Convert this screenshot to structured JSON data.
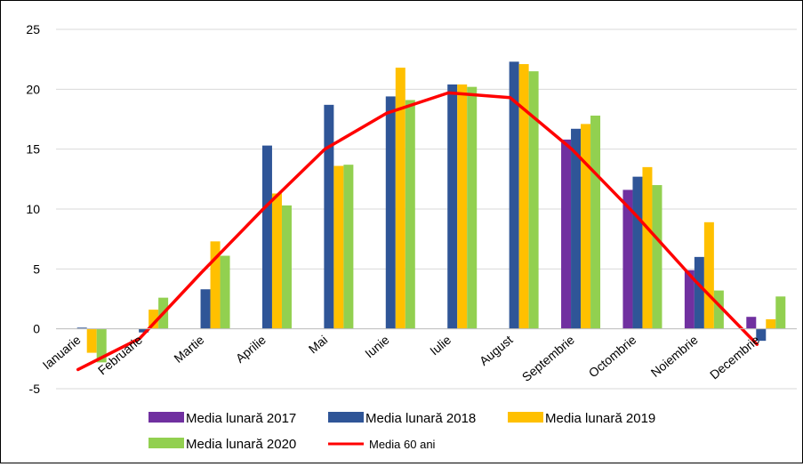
{
  "chart_data": {
    "type": "bar",
    "categories": [
      "Ianuarie",
      "Februarie",
      "Martie",
      "Aprilie",
      "Mai",
      "Iunie",
      "Iulie",
      "August",
      "Septembrie",
      "Octombrie",
      "Noiembrie",
      "Decembrie"
    ],
    "series": [
      {
        "name": "Media lunară 2017",
        "type": "bar",
        "color": "#7030a0",
        "values": [
          null,
          null,
          null,
          null,
          null,
          null,
          null,
          null,
          15.8,
          11.6,
          4.9,
          1.0
        ]
      },
      {
        "name": "Media lunară 2018",
        "type": "bar",
        "color": "#2f5597",
        "values": [
          0.1,
          -0.3,
          3.3,
          15.3,
          18.7,
          19.4,
          20.4,
          22.3,
          16.7,
          12.7,
          6.0,
          -1.0
        ]
      },
      {
        "name": "Media lunară 2019",
        "type": "bar",
        "color": "#ffc000",
        "values": [
          -2.0,
          1.6,
          7.3,
          11.3,
          13.6,
          21.8,
          20.4,
          22.1,
          17.1,
          13.5,
          8.9,
          0.8
        ]
      },
      {
        "name": "Media lunară 2020",
        "type": "bar",
        "color": "#92d050",
        "values": [
          -2.8,
          2.6,
          6.1,
          10.3,
          13.7,
          19.1,
          20.2,
          21.5,
          17.8,
          12.0,
          3.2,
          2.7
        ]
      },
      {
        "name": "Media 60 ani",
        "type": "line",
        "color": "#ff0000",
        "values": [
          -3.4,
          -0.8,
          4.7,
          10.0,
          15.0,
          18.0,
          19.7,
          19.3,
          15.0,
          9.7,
          4.0,
          -1.3
        ]
      }
    ],
    "yticks": [
      -5,
      0,
      5,
      10,
      15,
      20,
      25
    ],
    "ylim": [
      -5,
      25
    ],
    "grid": true,
    "legend_position": "bottom",
    "legend_rows": [
      [
        "Media lunară 2017",
        "Media lunară 2018",
        "Media lunară 2019"
      ],
      [
        "Media lunară 2020",
        "Media 60 ani"
      ]
    ],
    "title": "",
    "xlabel": "",
    "ylabel": ""
  }
}
